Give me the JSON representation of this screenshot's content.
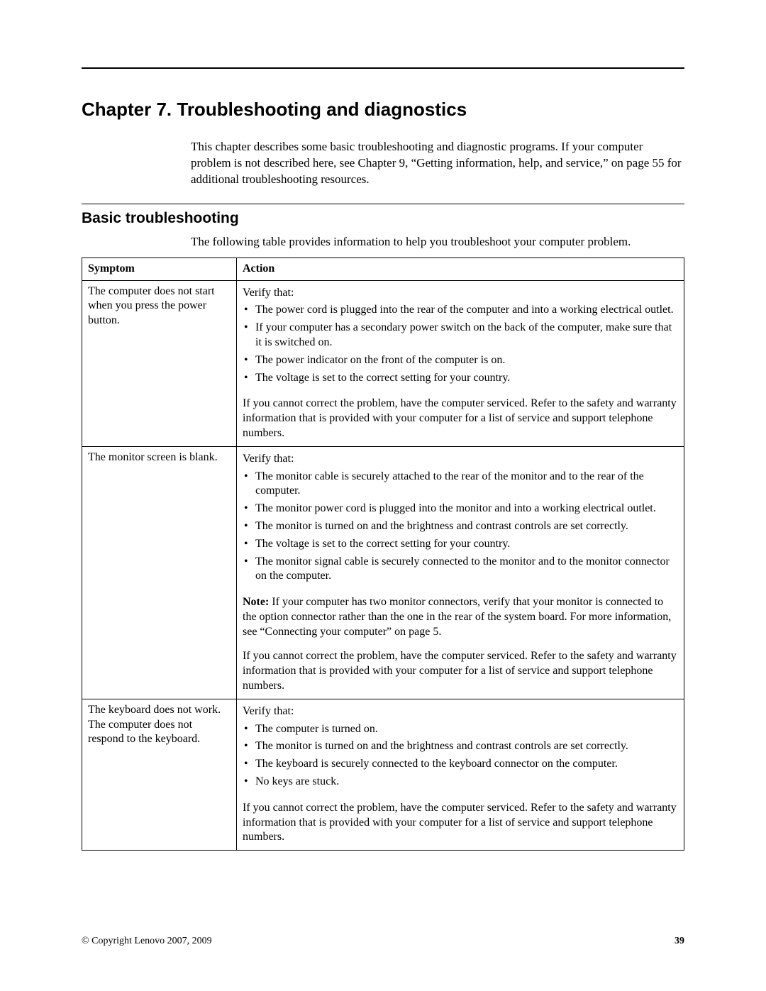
{
  "chapter": {
    "title": "Chapter 7. Troubleshooting and diagnostics",
    "intro": "This chapter describes some basic troubleshooting and diagnostic programs. If your computer problem is not described here, see Chapter 9, “Getting information, help, and service,” on page 55 for additional troubleshooting resources."
  },
  "section": {
    "title": "Basic troubleshooting",
    "intro": "The following table provides information to help you troubleshoot your computer problem."
  },
  "table": {
    "headers": {
      "symptom": "Symptom",
      "action": "Action"
    },
    "rows": [
      {
        "symptom": "The computer does not start when you press the power button.",
        "verify_label": "Verify that:",
        "bullets": [
          "The power cord is plugged into the rear of the computer and into a working electrical outlet.",
          "If your computer has a secondary power switch on the back of the computer, make sure that it is switched on.",
          "The power indicator on the front of the computer is on.",
          "The voltage is set to the correct setting for your country."
        ],
        "closing": "If you cannot correct the problem, have the computer serviced. Refer to the safety and warranty information that is provided with your computer for a list of service and support telephone numbers."
      },
      {
        "symptom": "The monitor screen is blank.",
        "verify_label": "Verify that:",
        "bullets": [
          "The monitor cable is securely attached to the rear of the monitor and to the rear of the computer.",
          "The monitor power cord is plugged into the monitor and into a working electrical outlet.",
          "The monitor is turned on and the brightness and contrast controls are set correctly.",
          "The voltage is set to the correct setting for your country.",
          "The monitor signal cable is securely connected to the monitor and to the monitor connector on the computer."
        ],
        "note_label": "Note:",
        "note_text": " If your computer has two monitor connectors, verify that your monitor is connected to the option connector rather than the one in the rear of the system board. For more information, see “Connecting your computer” on page 5.",
        "closing": "If you cannot correct the problem, have the computer serviced. Refer to the safety and warranty information that is provided with your computer for a list of service and support telephone numbers."
      },
      {
        "symptom": "The keyboard does not work. The computer does not respond to the keyboard.",
        "verify_label": "Verify that:",
        "bullets": [
          "The computer is turned on.",
          "The monitor is turned on and the brightness and contrast controls are set correctly.",
          "The keyboard is securely connected to the keyboard connector on the computer.",
          "No keys are stuck."
        ],
        "closing": "If you cannot correct the problem, have the computer serviced. Refer to the safety and warranty information that is provided with your computer for a list of service and support telephone numbers."
      }
    ]
  },
  "footer": {
    "copyright": "© Copyright Lenovo 2007, 2009",
    "page": "39"
  }
}
